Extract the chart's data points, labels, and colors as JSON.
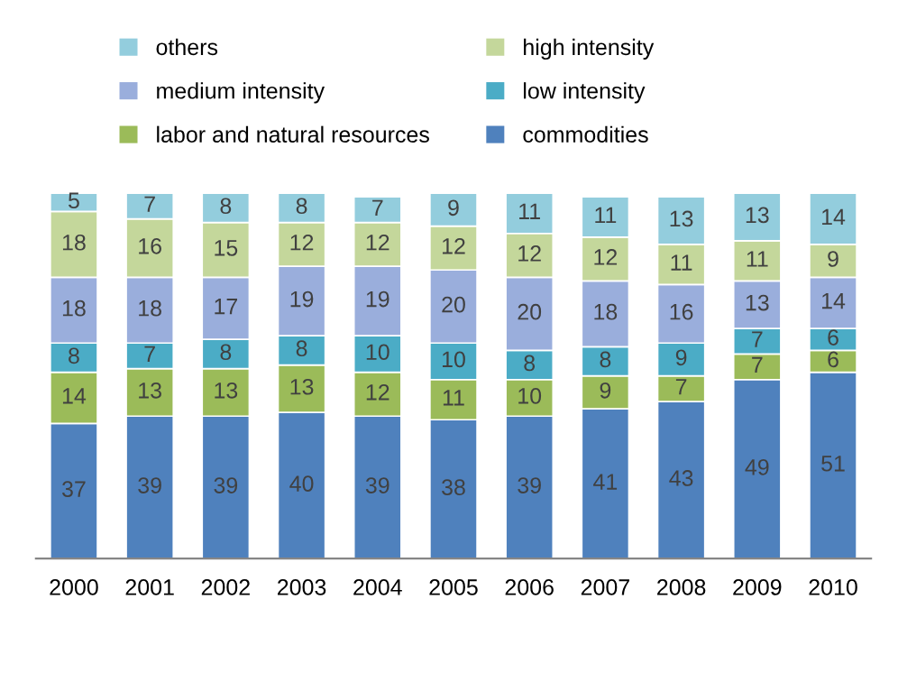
{
  "chart_data": {
    "type": "bar",
    "stacked": true,
    "data_labels": true,
    "legend": "top",
    "grid": false,
    "categories": [
      "2000",
      "2001",
      "2002",
      "2003",
      "2004",
      "2005",
      "2006",
      "2007",
      "2008",
      "2009",
      "2010"
    ],
    "series": [
      {
        "name": "commodities",
        "color": "#4f81bd",
        "values": [
          37,
          39,
          39,
          40,
          39,
          38,
          39,
          41,
          43,
          49,
          51
        ]
      },
      {
        "name": "labor and natural resources",
        "color": "#9bbb59",
        "values": [
          14,
          13,
          13,
          13,
          12,
          11,
          10,
          9,
          7,
          7,
          6
        ]
      },
      {
        "name": "low intensity",
        "color": "#4bacc6",
        "values": [
          8,
          7,
          8,
          8,
          10,
          10,
          8,
          8,
          9,
          7,
          6
        ]
      },
      {
        "name": "medium intensity",
        "color": "#9aaedc",
        "values": [
          18,
          18,
          17,
          19,
          19,
          20,
          20,
          18,
          16,
          13,
          14
        ]
      },
      {
        "name": "high intensity",
        "color": "#c4d79b",
        "values": [
          18,
          16,
          15,
          12,
          12,
          12,
          12,
          12,
          11,
          11,
          9
        ]
      },
      {
        "name": "others",
        "color": "#93cddd",
        "values": [
          5,
          7,
          8,
          8,
          7,
          9,
          11,
          11,
          13,
          13,
          14
        ]
      }
    ]
  }
}
